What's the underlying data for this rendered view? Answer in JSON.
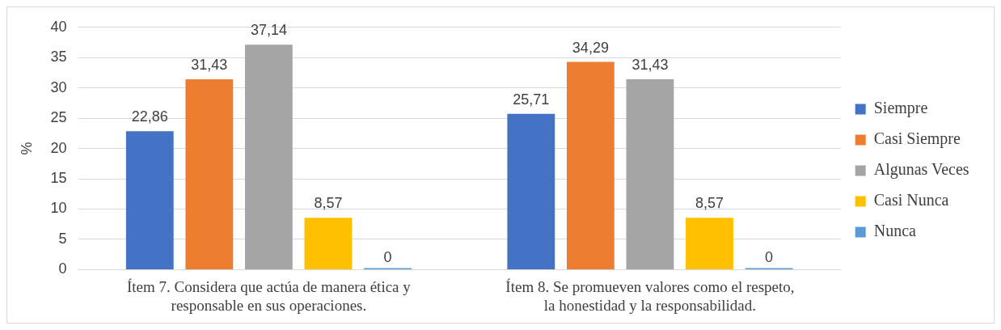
{
  "chart_data": {
    "type": "bar",
    "ylabel": "%",
    "categories": [
      "Ítem 7. Considera que actúa de manera ética y responsable en sus operaciones.",
      "Ítem 8. Se promueven valores como el respeto, la honestidad y la responsabilidad."
    ],
    "series": [
      {
        "name": "Siempre",
        "color": "#4472c4",
        "values": [
          22.86,
          25.71
        ],
        "value_labels": [
          "22,86",
          "25,71"
        ]
      },
      {
        "name": "Casi Siempre",
        "color": "#ed7d31",
        "values": [
          31.43,
          34.29
        ],
        "value_labels": [
          "31,43",
          "34,29"
        ]
      },
      {
        "name": "Algunas Veces",
        "color": "#a5a5a5",
        "values": [
          37.14,
          31.43
        ],
        "value_labels": [
          "37,14",
          "31,43"
        ]
      },
      {
        "name": "Casi Nunca",
        "color": "#ffc000",
        "values": [
          8.57,
          8.57
        ],
        "value_labels": [
          "8,57",
          "8,57"
        ]
      },
      {
        "name": "Nunca",
        "color": "#5b9bd5",
        "values": [
          0,
          0
        ],
        "value_labels": [
          "0",
          "0"
        ]
      }
    ],
    "ylim": [
      0,
      40
    ],
    "yticks": [
      0,
      5,
      10,
      15,
      20,
      25,
      30,
      35,
      40
    ],
    "grid": "y",
    "legend": "right"
  }
}
